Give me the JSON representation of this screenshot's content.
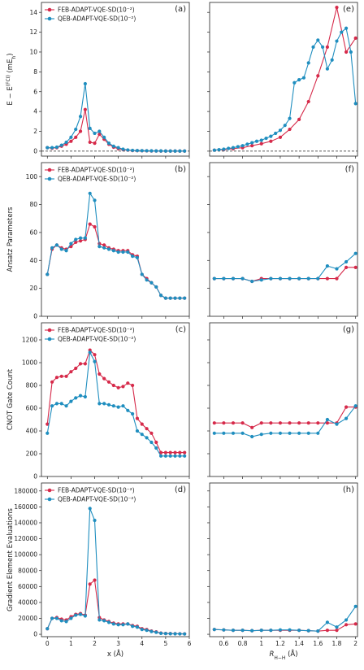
{
  "colors": {
    "feb": "#d62a4a",
    "qeb": "#1f8ebf",
    "axis": "#222222"
  },
  "chart_data": [
    {
      "id": "a",
      "panel_label": "(a)",
      "type": "line",
      "ylabel": "E − E(FCI) (mE_h)",
      "ylabel_parts": [
        "E − E",
        "(FCI)",
        " (mE",
        "h",
        ")"
      ],
      "xlim": [
        -0.25,
        6.0
      ],
      "ylim": [
        -0.5,
        15
      ],
      "yticks": [
        0,
        2,
        4,
        6,
        8,
        10,
        12,
        14
      ],
      "xticks": [
        0,
        1,
        2,
        3,
        4,
        5,
        6
      ],
      "show_xticklabels": false,
      "hline": 0,
      "legend": [
        "FEB-ADAPT-VQE-SD(10⁻²)",
        "QEB-ADAPT-VQE-SD(10⁻²)"
      ],
      "series": [
        {
          "key": "feb",
          "x": [
            0.0,
            0.2,
            0.4,
            0.6,
            0.8,
            1.0,
            1.2,
            1.4,
            1.6,
            1.8,
            2.0,
            2.2,
            2.4,
            2.6,
            2.8,
            3.0,
            3.2,
            3.4,
            3.6,
            3.8,
            4.0,
            4.2,
            4.4,
            4.6,
            4.8,
            5.0,
            5.2,
            5.4,
            5.6,
            5.8
          ],
          "y": [
            0.35,
            0.3,
            0.35,
            0.5,
            0.7,
            1.0,
            1.4,
            2.0,
            4.2,
            0.9,
            0.8,
            1.7,
            1.2,
            0.7,
            0.4,
            0.25,
            0.15,
            0.1,
            0.06,
            0.05,
            0.04,
            0.03,
            0.02,
            0.02,
            0.01,
            0.01,
            0.01,
            0.01,
            0.01,
            0.01
          ]
        },
        {
          "key": "qeb",
          "x": [
            0.0,
            0.2,
            0.4,
            0.6,
            0.8,
            1.0,
            1.2,
            1.4,
            1.6,
            1.8,
            2.0,
            2.2,
            2.4,
            2.6,
            2.8,
            3.0,
            3.2,
            3.4,
            3.6,
            3.8,
            4.0,
            4.2,
            4.4,
            4.6,
            4.8,
            5.0,
            5.2,
            5.4,
            5.6,
            5.8
          ],
          "y": [
            0.35,
            0.35,
            0.4,
            0.6,
            0.9,
            1.4,
            2.2,
            3.5,
            6.8,
            2.3,
            1.8,
            2.0,
            1.4,
            0.8,
            0.5,
            0.35,
            0.2,
            0.12,
            0.08,
            0.06,
            0.05,
            0.04,
            0.03,
            0.02,
            0.02,
            0.01,
            0.01,
            0.01,
            0.01,
            0.01
          ]
        }
      ]
    },
    {
      "id": "e",
      "panel_label": "(e)",
      "type": "line",
      "xlim": [
        0.45,
        2.02
      ],
      "ylim": [
        -0.5,
        15
      ],
      "yticks": [
        0,
        2,
        4,
        6,
        8,
        10,
        12,
        14
      ],
      "xticks": [
        0.6,
        0.8,
        1.0,
        1.2,
        1.4,
        1.6,
        1.8,
        2.0
      ],
      "show_yticklabels": false,
      "show_xticklabels": false,
      "hline": 0,
      "series": [
        {
          "key": "feb",
          "x": [
            0.5,
            0.6,
            0.7,
            0.8,
            0.9,
            1.0,
            1.1,
            1.2,
            1.3,
            1.4,
            1.5,
            1.6,
            1.7,
            1.8,
            1.9,
            2.0
          ],
          "y": [
            0.1,
            0.15,
            0.25,
            0.35,
            0.55,
            0.75,
            1.0,
            1.4,
            2.2,
            3.2,
            5.0,
            7.6,
            10.5,
            14.5,
            10.0,
            11.4
          ]
        },
        {
          "key": "qeb",
          "x": [
            0.5,
            0.55,
            0.6,
            0.65,
            0.7,
            0.75,
            0.8,
            0.85,
            0.9,
            0.95,
            1.0,
            1.05,
            1.1,
            1.15,
            1.2,
            1.25,
            1.3,
            1.35,
            1.4,
            1.45,
            1.5,
            1.55,
            1.6,
            1.65,
            1.7,
            1.75,
            1.8,
            1.85,
            1.9,
            1.95,
            2.0
          ],
          "y": [
            0.1,
            0.15,
            0.2,
            0.28,
            0.35,
            0.45,
            0.55,
            0.7,
            0.85,
            1.0,
            1.1,
            1.3,
            1.5,
            1.8,
            2.1,
            2.6,
            3.3,
            6.9,
            7.2,
            7.4,
            8.9,
            10.5,
            11.2,
            10.5,
            8.3,
            9.2,
            11.1,
            12.0,
            12.4,
            10.0,
            4.8
          ]
        }
      ]
    },
    {
      "id": "b",
      "panel_label": "(b)",
      "type": "line",
      "ylabel": "Ansatz Parameters",
      "xlim": [
        -0.25,
        6.0
      ],
      "ylim": [
        0,
        110
      ],
      "yticks": [
        0,
        20,
        40,
        60,
        80,
        100
      ],
      "xticks": [
        0,
        1,
        2,
        3,
        4,
        5,
        6
      ],
      "show_xticklabels": false,
      "legend": [
        "FEB-ADAPT-VQE-SD(10⁻²)",
        "QEB-ADAPT-VQE-SD(10⁻²)"
      ],
      "series": [
        {
          "key": "feb",
          "x": [
            0.0,
            0.2,
            0.4,
            0.6,
            0.8,
            1.0,
            1.2,
            1.4,
            1.6,
            1.8,
            2.0,
            2.2,
            2.4,
            2.6,
            2.8,
            3.0,
            3.2,
            3.4,
            3.6,
            3.8,
            4.0,
            4.2,
            4.4,
            4.6,
            4.8,
            5.0,
            5.2,
            5.4,
            5.6,
            5.8
          ],
          "y": [
            30,
            48,
            51,
            49,
            48,
            50,
            53,
            54,
            55,
            66,
            64,
            52,
            51,
            49,
            48,
            47,
            47,
            47,
            44,
            43,
            30,
            27,
            24,
            21,
            15,
            13,
            13,
            13,
            13,
            13
          ]
        },
        {
          "key": "qeb",
          "x": [
            0.0,
            0.2,
            0.4,
            0.6,
            0.8,
            1.0,
            1.2,
            1.4,
            1.6,
            1.8,
            2.0,
            2.2,
            2.4,
            2.6,
            2.8,
            3.0,
            3.2,
            3.4,
            3.6,
            3.8,
            4.0,
            4.2,
            4.4,
            4.6,
            4.8,
            5.0,
            5.2,
            5.4,
            5.6,
            5.8
          ],
          "y": [
            30,
            49,
            51,
            48,
            47,
            52,
            55,
            56,
            56,
            88,
            83,
            50,
            49,
            48,
            47,
            46,
            46,
            46,
            43,
            42,
            30,
            26,
            24,
            21,
            15,
            13,
            13,
            13,
            13,
            13
          ]
        }
      ]
    },
    {
      "id": "f",
      "panel_label": "(f)",
      "type": "line",
      "xlim": [
        0.45,
        2.02
      ],
      "ylim": [
        0,
        110
      ],
      "yticks": [
        0,
        20,
        40,
        60,
        80,
        100
      ],
      "xticks": [
        0.6,
        0.8,
        1.0,
        1.2,
        1.4,
        1.6,
        1.8,
        2.0
      ],
      "show_yticklabels": false,
      "show_xticklabels": false,
      "series": [
        {
          "key": "feb",
          "x": [
            0.5,
            0.6,
            0.7,
            0.8,
            0.9,
            1.0,
            1.1,
            1.2,
            1.3,
            1.4,
            1.5,
            1.6,
            1.7,
            1.8,
            1.9,
            2.0
          ],
          "y": [
            27,
            27,
            27,
            27,
            25,
            27,
            27,
            27,
            27,
            27,
            27,
            27,
            27,
            27,
            35,
            35
          ]
        },
        {
          "key": "qeb",
          "x": [
            0.5,
            0.6,
            0.7,
            0.8,
            0.9,
            1.0,
            1.1,
            1.2,
            1.3,
            1.4,
            1.5,
            1.6,
            1.7,
            1.8,
            1.9,
            2.0
          ],
          "y": [
            27,
            27,
            27,
            27,
            25,
            26,
            27,
            27,
            27,
            27,
            27,
            27,
            36,
            34,
            39,
            45
          ]
        }
      ]
    },
    {
      "id": "c",
      "panel_label": "(c)",
      "type": "line",
      "ylabel": "CNOT Gate Count",
      "xlim": [
        -0.25,
        6.0
      ],
      "ylim": [
        0,
        1350
      ],
      "yticks": [
        0,
        200,
        400,
        600,
        800,
        1000,
        1200
      ],
      "xticks": [
        0,
        1,
        2,
        3,
        4,
        5,
        6
      ],
      "show_xticklabels": false,
      "legend": [
        "FEB-ADAPT-VQE-SD(10⁻²)",
        "QEB-ADAPT-VQE-SD(10⁻²)"
      ],
      "series": [
        {
          "key": "feb",
          "x": [
            0.0,
            0.2,
            0.4,
            0.6,
            0.8,
            1.0,
            1.2,
            1.4,
            1.6,
            1.8,
            2.0,
            2.2,
            2.4,
            2.6,
            2.8,
            3.0,
            3.2,
            3.4,
            3.6,
            3.8,
            4.0,
            4.2,
            4.4,
            4.6,
            4.8,
            5.0,
            5.2,
            5.4,
            5.6,
            5.8
          ],
          "y": [
            460,
            830,
            870,
            880,
            880,
            920,
            950,
            990,
            990,
            1110,
            1070,
            900,
            860,
            830,
            800,
            780,
            790,
            820,
            800,
            510,
            460,
            420,
            380,
            300,
            210,
            210,
            210,
            210,
            210,
            210
          ]
        },
        {
          "key": "qeb",
          "x": [
            0.0,
            0.2,
            0.4,
            0.6,
            0.8,
            1.0,
            1.2,
            1.4,
            1.6,
            1.8,
            2.0,
            2.2,
            2.4,
            2.6,
            2.8,
            3.0,
            3.2,
            3.4,
            3.6,
            3.8,
            4.0,
            4.2,
            4.4,
            4.6,
            4.8,
            5.0,
            5.2,
            5.4,
            5.6,
            5.8
          ],
          "y": [
            380,
            620,
            640,
            640,
            620,
            660,
            690,
            710,
            700,
            1090,
            1010,
            640,
            640,
            630,
            620,
            610,
            620,
            580,
            550,
            400,
            370,
            340,
            300,
            250,
            180,
            180,
            180,
            180,
            180,
            180
          ]
        }
      ]
    },
    {
      "id": "g",
      "panel_label": "(g)",
      "type": "line",
      "xlim": [
        0.45,
        2.02
      ],
      "ylim": [
        0,
        1350
      ],
      "yticks": [
        0,
        200,
        400,
        600,
        800,
        1000,
        1200
      ],
      "xticks": [
        0.6,
        0.8,
        1.0,
        1.2,
        1.4,
        1.6,
        1.8,
        2.0
      ],
      "show_yticklabels": false,
      "show_xticklabels": false,
      "series": [
        {
          "key": "feb",
          "x": [
            0.5,
            0.6,
            0.7,
            0.8,
            0.9,
            1.0,
            1.1,
            1.2,
            1.3,
            1.4,
            1.5,
            1.6,
            1.7,
            1.8,
            1.9,
            2.0
          ],
          "y": [
            470,
            470,
            470,
            470,
            430,
            470,
            470,
            470,
            470,
            470,
            470,
            470,
            470,
            470,
            610,
            610
          ]
        },
        {
          "key": "qeb",
          "x": [
            0.5,
            0.6,
            0.7,
            0.8,
            0.9,
            1.0,
            1.1,
            1.2,
            1.3,
            1.4,
            1.5,
            1.6,
            1.7,
            1.8,
            1.9,
            2.0
          ],
          "y": [
            380,
            380,
            380,
            380,
            350,
            370,
            380,
            380,
            380,
            380,
            380,
            380,
            500,
            460,
            510,
            620
          ]
        }
      ]
    },
    {
      "id": "d",
      "panel_label": "(d)",
      "type": "line",
      "ylabel": "Gradient Element Evaluations",
      "xlim": [
        -0.25,
        6.0
      ],
      "ylim": [
        -3000,
        190000
      ],
      "yticks": [
        0,
        20000,
        40000,
        60000,
        80000,
        100000,
        120000,
        140000,
        160000,
        180000
      ],
      "xticks": [
        0,
        1,
        2,
        3,
        4,
        5,
        6
      ],
      "xlabel": "x (Å)",
      "legend": [
        "FEB-ADAPT-VQE-SD(10⁻²)",
        "QEB-ADAPT-VQE-SD(10⁻²)"
      ],
      "series": [
        {
          "key": "feb",
          "x": [
            0.0,
            0.2,
            0.4,
            0.6,
            0.8,
            1.0,
            1.2,
            1.4,
            1.6,
            1.8,
            2.0,
            2.2,
            2.4,
            2.6,
            2.8,
            3.0,
            3.2,
            3.4,
            3.6,
            3.8,
            4.0,
            4.2,
            4.4,
            4.6,
            4.8,
            5.0,
            5.2,
            5.4,
            5.6,
            5.8
          ],
          "y": [
            7000,
            20000,
            21000,
            19000,
            18000,
            22000,
            25000,
            26000,
            24000,
            63000,
            68000,
            21000,
            18000,
            16000,
            14000,
            13000,
            13000,
            13000,
            11000,
            10000,
            7000,
            6000,
            4000,
            3000,
            1500,
            1000,
            800,
            700,
            600,
            500
          ]
        },
        {
          "key": "qeb",
          "x": [
            0.0,
            0.2,
            0.4,
            0.6,
            0.8,
            1.0,
            1.2,
            1.4,
            1.6,
            1.8,
            2.0,
            2.2,
            2.4,
            2.6,
            2.8,
            3.0,
            3.2,
            3.4,
            3.6,
            3.8,
            4.0,
            4.2,
            4.4,
            4.6,
            4.8,
            5.0,
            5.2,
            5.4,
            5.6,
            5.8
          ],
          "y": [
            7000,
            20000,
            20000,
            17000,
            16000,
            20000,
            24000,
            25000,
            23000,
            158000,
            143000,
            18000,
            17000,
            15000,
            13000,
            12000,
            12000,
            13000,
            10000,
            9000,
            6000,
            5000,
            3500,
            2500,
            1200,
            900,
            700,
            600,
            500,
            400
          ]
        }
      ]
    },
    {
      "id": "h",
      "panel_label": "(h)",
      "type": "line",
      "xlim": [
        0.45,
        2.02
      ],
      "ylim": [
        -3000,
        190000
      ],
      "yticks": [
        0,
        20000,
        40000,
        60000,
        80000,
        100000,
        120000,
        140000,
        160000,
        180000
      ],
      "xticks": [
        0.6,
        0.8,
        1.0,
        1.2,
        1.4,
        1.6,
        1.8,
        2.0
      ],
      "show_yticklabels": false,
      "xlabel": "R_H−H (Å)",
      "xlabel_parts": [
        "R",
        "H−H",
        " (Å)"
      ],
      "series": [
        {
          "key": "feb",
          "x": [
            0.5,
            0.6,
            0.7,
            0.8,
            0.9,
            1.0,
            1.1,
            1.2,
            1.3,
            1.4,
            1.5,
            1.6,
            1.7,
            1.8,
            1.9,
            2.0
          ],
          "y": [
            6000,
            5500,
            5000,
            5000,
            4500,
            5000,
            5000,
            5000,
            5000,
            5000,
            4500,
            4000,
            5000,
            5000,
            12000,
            13000
          ]
        },
        {
          "key": "qeb",
          "x": [
            0.5,
            0.6,
            0.7,
            0.8,
            0.9,
            1.0,
            1.1,
            1.2,
            1.3,
            1.4,
            1.5,
            1.6,
            1.7,
            1.8,
            1.9,
            2.0
          ],
          "y": [
            6000,
            5500,
            5000,
            5000,
            4500,
            5000,
            5000,
            5500,
            5500,
            5000,
            4500,
            4000,
            15000,
            9000,
            18000,
            35000
          ]
        }
      ]
    }
  ]
}
